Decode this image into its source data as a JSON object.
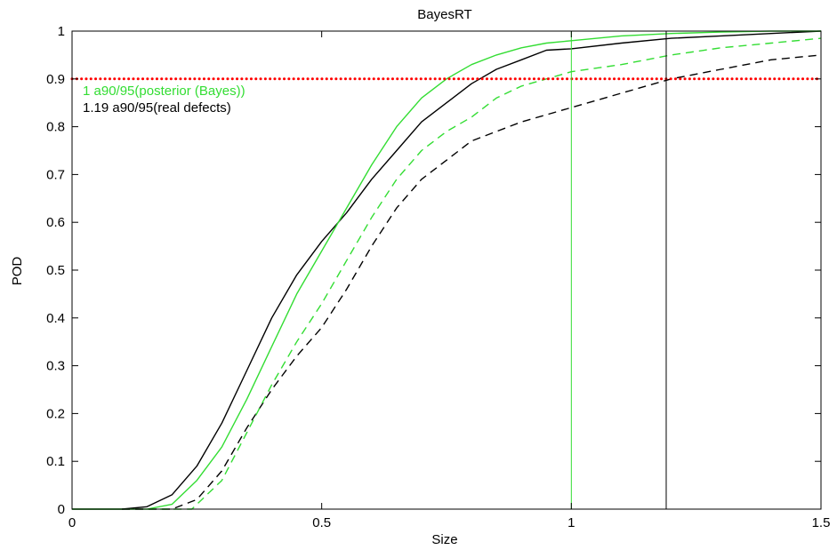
{
  "chart_data": {
    "type": "line",
    "title": "BayesRT",
    "xlabel": "Size",
    "ylabel": "POD",
    "xlim": [
      0,
      1.5
    ],
    "ylim": [
      0,
      1
    ],
    "grid": false,
    "xticks": [
      0,
      0.5,
      1,
      1.5
    ],
    "xtick_labels": [
      "0",
      "0.5",
      "1",
      "1.5"
    ],
    "yticks": [
      0,
      0.1,
      0.2,
      0.3,
      0.4,
      0.5,
      0.6,
      0.7,
      0.8,
      0.9,
      1
    ],
    "ytick_labels": [
      "0",
      "0.1",
      "0.2",
      "0.3",
      "0.4",
      "0.5",
      "0.6",
      "0.7",
      "0.8",
      "0.9",
      "1"
    ],
    "series": [
      {
        "color": "#000000",
        "style": "solid",
        "x": [
          0,
          0.1,
          0.15,
          0.2,
          0.25,
          0.3,
          0.35,
          0.4,
          0.45,
          0.5,
          0.55,
          0.6,
          0.65,
          0.7,
          0.75,
          0.8,
          0.85,
          0.9,
          0.95,
          1.0,
          1.1,
          1.2,
          1.3,
          1.4,
          1.5
        ],
        "y": [
          0,
          0,
          0.005,
          0.03,
          0.09,
          0.18,
          0.29,
          0.4,
          0.49,
          0.56,
          0.62,
          0.69,
          0.75,
          0.81,
          0.85,
          0.89,
          0.92,
          0.94,
          0.96,
          0.963,
          0.975,
          0.985,
          0.99,
          0.995,
          1.0
        ]
      },
      {
        "color": "#33dd33",
        "style": "solid",
        "x": [
          0,
          0.15,
          0.2,
          0.25,
          0.3,
          0.35,
          0.4,
          0.45,
          0.5,
          0.55,
          0.6,
          0.65,
          0.7,
          0.75,
          0.8,
          0.85,
          0.9,
          0.95,
          1.0,
          1.1,
          1.2,
          1.3,
          1.4,
          1.5
        ],
        "y": [
          0,
          0,
          0.01,
          0.06,
          0.13,
          0.23,
          0.34,
          0.45,
          0.54,
          0.63,
          0.72,
          0.8,
          0.86,
          0.9,
          0.93,
          0.95,
          0.965,
          0.975,
          0.98,
          0.99,
          0.995,
          0.998,
          1.0,
          1.0
        ]
      },
      {
        "color": "#000000",
        "style": "dashed",
        "x": [
          0.1,
          0.2,
          0.25,
          0.3,
          0.35,
          0.4,
          0.45,
          0.5,
          0.55,
          0.6,
          0.65,
          0.7,
          0.75,
          0.8,
          0.9,
          1.0,
          1.1,
          1.2,
          1.3,
          1.4,
          1.5
        ],
        "y": [
          0,
          0,
          0.02,
          0.08,
          0.17,
          0.25,
          0.32,
          0.38,
          0.46,
          0.55,
          0.63,
          0.69,
          0.73,
          0.77,
          0.81,
          0.84,
          0.87,
          0.9,
          0.92,
          0.94,
          0.95
        ]
      },
      {
        "color": "#33dd33",
        "style": "dashed",
        "x": [
          0.15,
          0.24,
          0.3,
          0.35,
          0.4,
          0.45,
          0.5,
          0.55,
          0.6,
          0.65,
          0.7,
          0.75,
          0.8,
          0.85,
          0.9,
          0.95,
          1.0,
          1.1,
          1.2,
          1.3,
          1.4,
          1.5
        ],
        "y": [
          0,
          0,
          0.06,
          0.16,
          0.26,
          0.35,
          0.43,
          0.52,
          0.61,
          0.69,
          0.75,
          0.79,
          0.82,
          0.86,
          0.885,
          0.9,
          0.915,
          0.93,
          0.95,
          0.965,
          0.975,
          0.985
        ]
      }
    ],
    "reference_lines": [
      {
        "orientation": "horizontal",
        "value": 0.9,
        "color": "#ff0000",
        "style": "dotted"
      },
      {
        "orientation": "vertical",
        "value": 1.0,
        "color": "#33dd33",
        "style": "solid"
      },
      {
        "orientation": "vertical",
        "value": 1.19,
        "color": "#000000",
        "style": "solid"
      }
    ],
    "annotations": [
      {
        "text": "1 a90/95(posterior (Bayes))",
        "color": "#33dd33"
      },
      {
        "text": "1.19 a90/95(real defects)",
        "color": "#000000"
      }
    ]
  }
}
